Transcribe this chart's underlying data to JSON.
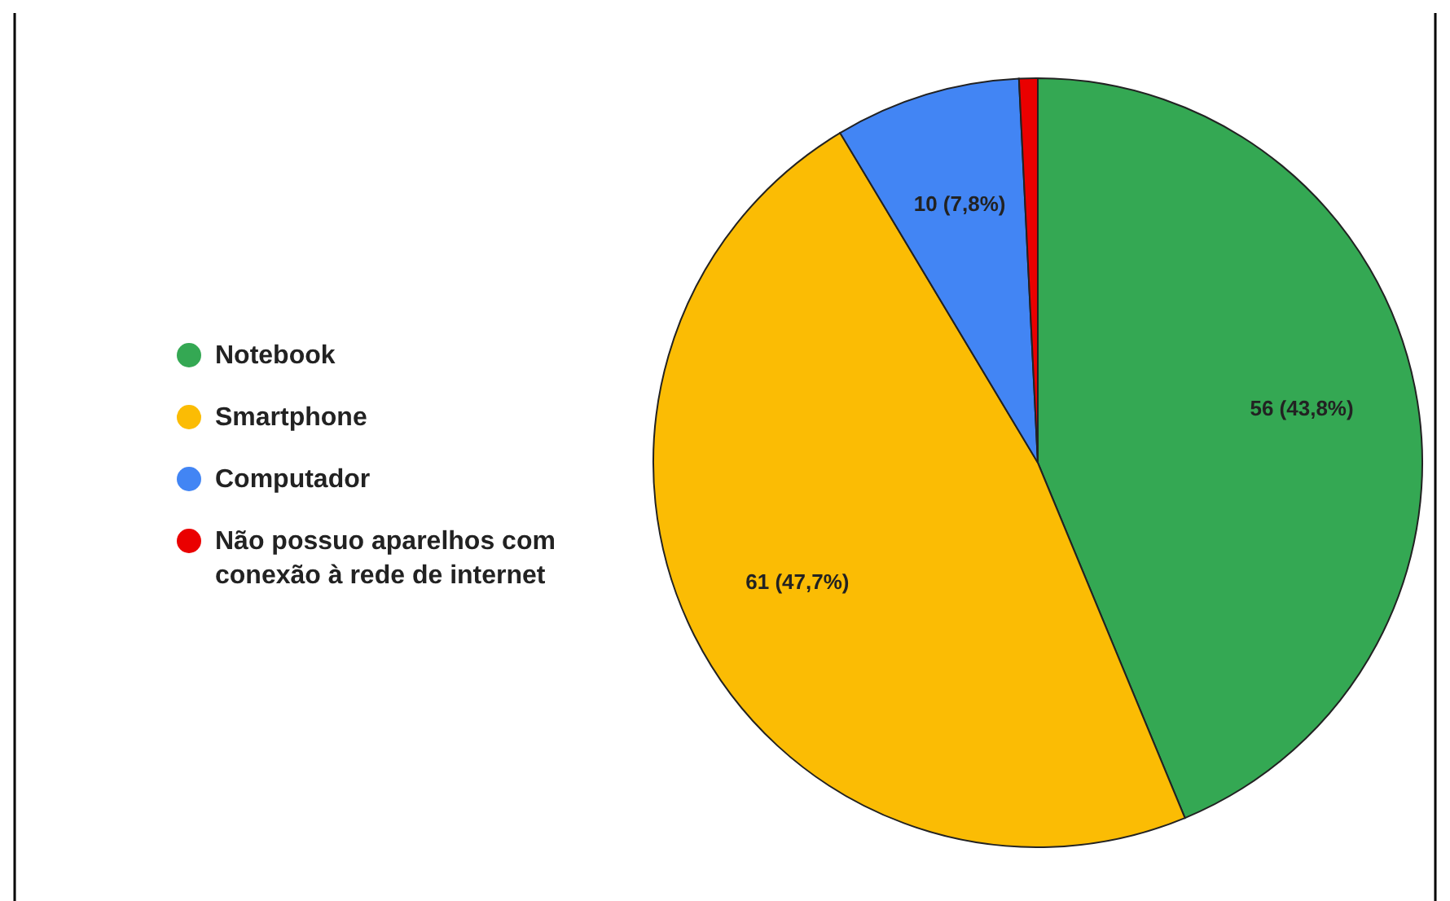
{
  "chart_data": {
    "type": "pie",
    "categories": [
      "Notebook",
      "Smartphone",
      "Computador",
      "Não possuo aparelhos com conexão à rede de internet"
    ],
    "values": [
      56,
      61,
      10,
      1
    ],
    "colors": [
      "#34a853",
      "#fbbc04",
      "#4285f4",
      "#ea0000"
    ],
    "value_labels": [
      "56 (43,8%)",
      "61 (47,7%)",
      "10 (7,8%)",
      null
    ],
    "legend": "left"
  }
}
